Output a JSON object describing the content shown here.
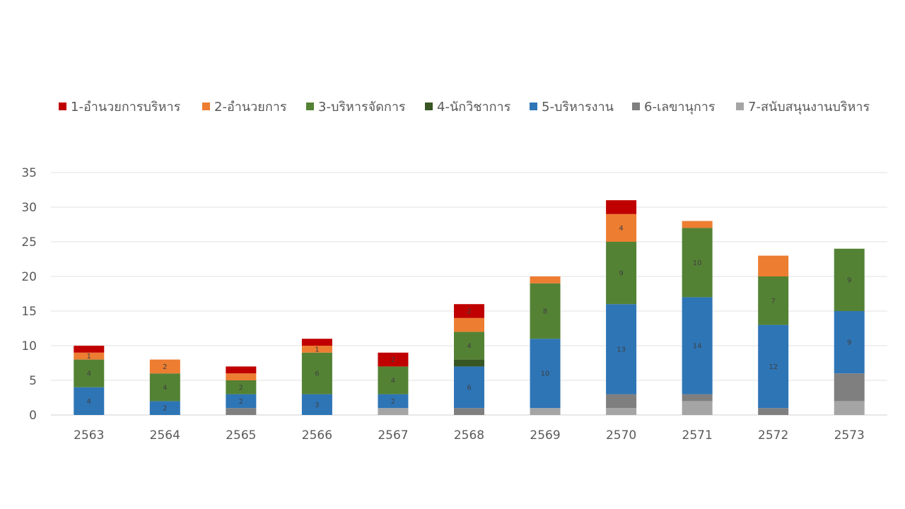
{
  "chart_data": {
    "type": "bar",
    "stacked": true,
    "categories": [
      "2563",
      "2564",
      "2565",
      "2566",
      "2567",
      "2568",
      "2569",
      "2570",
      "2571",
      "2572",
      "2573"
    ],
    "ylim": [
      0,
      35
    ],
    "yticks": [
      "0",
      "5",
      "10",
      "15",
      "20",
      "25",
      "30",
      "35"
    ],
    "grid": true,
    "legend_position": "top",
    "series": [
      {
        "name": "7-สนับสนุนงานบริหาร",
        "color": "#a5a5a5",
        "values": [
          0,
          0,
          0,
          0,
          1,
          0,
          1,
          1,
          2,
          0,
          2
        ]
      },
      {
        "name": "6-เลขานุการ",
        "color": "#7f7f7f",
        "values": [
          0,
          0,
          1,
          0,
          0,
          1,
          0,
          2,
          1,
          1,
          4
        ]
      },
      {
        "name": "5-บริหารงาน",
        "color": "#2e75b6",
        "values": [
          4,
          2,
          2,
          3,
          2,
          6,
          10,
          13,
          14,
          12,
          9
        ]
      },
      {
        "name": "4-นักวิชาการ",
        "color": "#375623",
        "values": [
          0,
          0,
          0,
          0,
          0,
          1,
          0,
          0,
          0,
          0,
          0
        ]
      },
      {
        "name": "3-บริหารจัดการ",
        "color": "#548235",
        "values": [
          4,
          4,
          2,
          6,
          4,
          4,
          8,
          9,
          10,
          7,
          9
        ]
      },
      {
        "name": "2-อำนวยการ",
        "color": "#ed7d31",
        "values": [
          1,
          2,
          1,
          1,
          0,
          2,
          1,
          4,
          1,
          3,
          0
        ]
      },
      {
        "name": "1-อำนวยการบริหาร",
        "color": "#c00000",
        "values": [
          1,
          0,
          1,
          1,
          2,
          2,
          0,
          2,
          0,
          0,
          0
        ]
      }
    ],
    "data_labels": [
      {
        "category": "2563",
        "series": "5-บริหารงาน",
        "text": "4"
      },
      {
        "category": "2563",
        "series": "3-บริหารจัดการ",
        "text": "4"
      },
      {
        "category": "2563",
        "series": "2-อำนวยการ",
        "text": "1"
      },
      {
        "category": "2564",
        "series": "5-บริหารงาน",
        "text": "2"
      },
      {
        "category": "2564",
        "series": "3-บริหารจัดการ",
        "text": "4"
      },
      {
        "category": "2564",
        "series": "2-อำนวยการ",
        "text": "2"
      },
      {
        "category": "2565",
        "series": "5-บริหารงาน",
        "text": "2"
      },
      {
        "category": "2565",
        "series": "3-บริหารจัดการ",
        "text": "2"
      },
      {
        "category": "2566",
        "series": "5-บริหารงาน",
        "text": "3"
      },
      {
        "category": "2566",
        "series": "3-บริหารจัดการ",
        "text": "6"
      },
      {
        "category": "2566",
        "series": "2-อำนวยการ",
        "text": "1"
      },
      {
        "category": "2567",
        "series": "5-บริหารงาน",
        "text": "2"
      },
      {
        "category": "2567",
        "series": "3-บริหารจัดการ",
        "text": "4"
      },
      {
        "category": "2567",
        "series": "1-อำนวยการบริหาร",
        "text": "2"
      },
      {
        "category": "2568",
        "series": "5-บริหารงาน",
        "text": "6"
      },
      {
        "category": "2568",
        "series": "3-บริหารจัดการ",
        "text": "4"
      },
      {
        "category": "2568",
        "series": "1-อำนวยการบริหาร",
        "text": "2"
      },
      {
        "category": "2569",
        "series": "5-บริหารงาน",
        "text": "10"
      },
      {
        "category": "2569",
        "series": "3-บริหารจัดการ",
        "text": "8"
      },
      {
        "category": "2570",
        "series": "5-บริหารงาน",
        "text": "13"
      },
      {
        "category": "2570",
        "series": "3-บริหารจัดการ",
        "text": "9"
      },
      {
        "category": "2570",
        "series": "2-อำนวยการ",
        "text": "4"
      },
      {
        "category": "2571",
        "series": "5-บริหารงาน",
        "text": "14"
      },
      {
        "category": "2571",
        "series": "3-บริหารจัดการ",
        "text": "10"
      },
      {
        "category": "2572",
        "series": "5-บริหารงาน",
        "text": "12"
      },
      {
        "category": "2572",
        "series": "3-บริหารจัดการ",
        "text": "7"
      },
      {
        "category": "2573",
        "series": "5-บริหารงาน",
        "text": "9"
      },
      {
        "category": "2573",
        "series": "3-บริหารจัดการ",
        "text": "9"
      }
    ],
    "legend_order": [
      "1-อำนวยการบริหาร",
      "2-อำนวยการ",
      "3-บริหารจัดการ",
      "4-นักวิชาการ",
      "5-บริหารงาน",
      "6-เลขานุการ",
      "7-สนับสนุนงานบริหาร"
    ]
  }
}
